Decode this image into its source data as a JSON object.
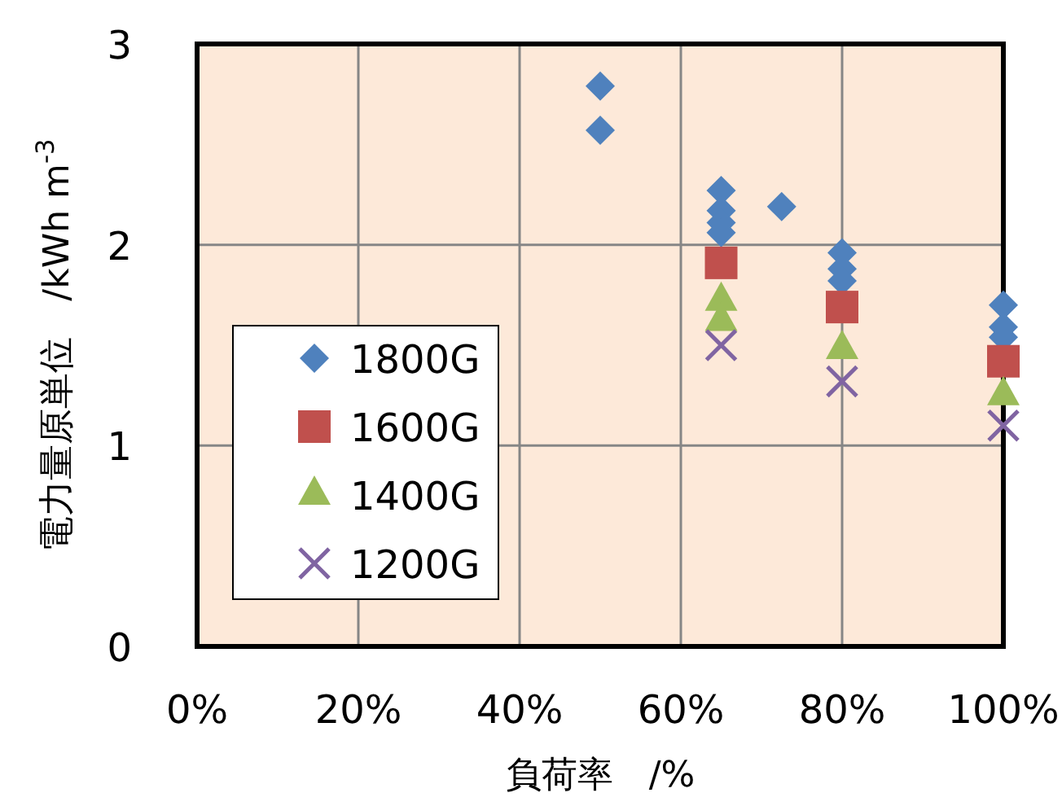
{
  "chart_data": {
    "type": "scatter",
    "xlabel": "負荷率　/%",
    "ylabel": "電力量原単位　/kWh m$^{-3}$",
    "xlim": [
      0,
      100
    ],
    "xticks": [
      {
        "value": 0,
        "label": "0%"
      },
      {
        "value": 20,
        "label": "20%"
      },
      {
        "value": 40,
        "label": "40%"
      },
      {
        "value": 60,
        "label": "60%"
      },
      {
        "value": 80,
        "label": "80%"
      },
      {
        "value": 100,
        "label": "100%"
      }
    ],
    "ylim": [
      0,
      3
    ],
    "yticks": [
      0,
      1,
      2,
      3
    ],
    "grid": true,
    "legend": "left",
    "series": [
      {
        "name": "1800G",
        "color": "#4f81bd",
        "marker": "diamond",
        "x": [
          50,
          50,
          65,
          65,
          65,
          65,
          72.5,
          80,
          80,
          80,
          100,
          100,
          100
        ],
        "values": [
          2.79,
          2.57,
          2.27,
          2.17,
          2.11,
          2.06,
          2.19,
          1.96,
          1.88,
          1.82,
          1.7,
          1.59,
          1.54
        ]
      },
      {
        "name": "1600G",
        "color": "#c0504d",
        "marker": "square",
        "x": [
          65,
          80,
          100
        ],
        "values": [
          1.91,
          1.69,
          1.42
        ]
      },
      {
        "name": "1400G",
        "color": "#9bbb59",
        "marker": "triangle",
        "x": [
          65,
          65,
          80,
          100
        ],
        "values": [
          1.72,
          1.62,
          1.48,
          1.25
        ]
      },
      {
        "name": "1200G",
        "color": "#8064a2",
        "marker": "cross",
        "x": [
          65,
          80,
          100
        ],
        "values": [
          1.5,
          1.32,
          1.1
        ]
      }
    ]
  }
}
